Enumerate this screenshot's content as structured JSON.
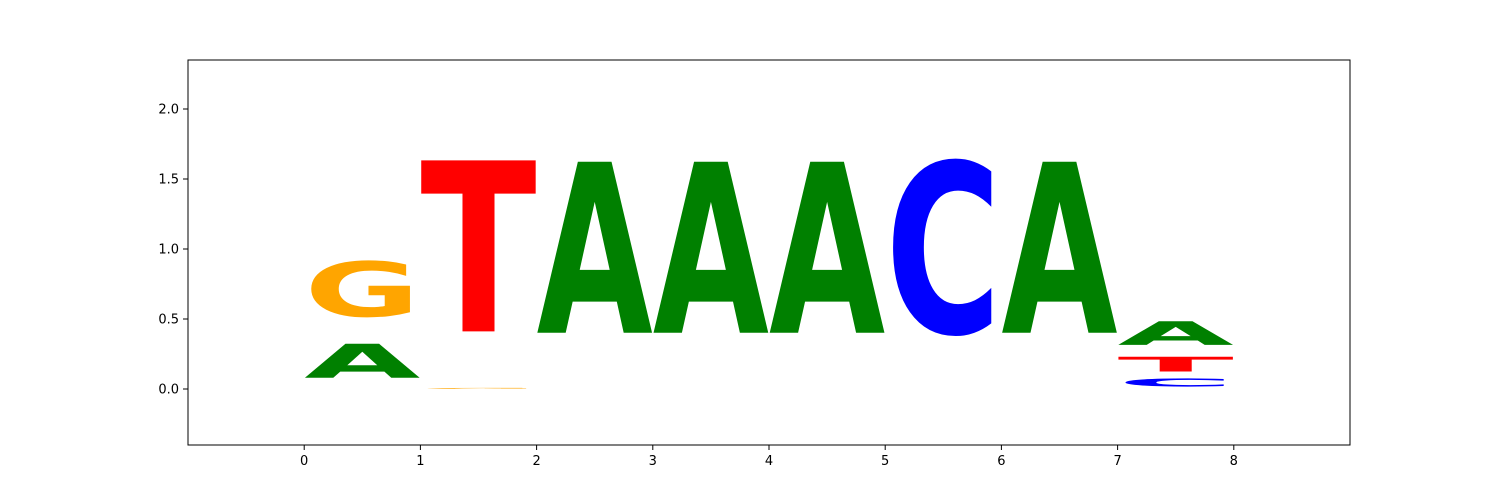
{
  "chart_data": {
    "type": "sequence-logo",
    "title": "",
    "xlabel": "",
    "ylabel": "",
    "xlim": [
      -1,
      9
    ],
    "ylim": [
      -0.4,
      2.35
    ],
    "xticks": [
      0,
      1,
      2,
      3,
      4,
      5,
      6,
      7,
      8
    ],
    "yticks": [
      0.0,
      0.5,
      1.0,
      1.5,
      2.0
    ],
    "ytick_labels": [
      "0.0",
      "0.5",
      "1.0",
      "1.5",
      "2.0"
    ],
    "grid": false,
    "colors": {
      "A": "#008000",
      "C": "#0000ff",
      "G": "#ffa500",
      "T": "#ff0000"
    },
    "positions": [
      {
        "x_start": 0,
        "x_end": 1,
        "stack": [
          {
            "base": "A",
            "height": 0.39
          },
          {
            "base": "G",
            "height": 0.63
          }
        ]
      },
      {
        "x_start": 1,
        "x_end": 2,
        "stack": [
          {
            "base": "G",
            "height": 0.01
          },
          {
            "base": "T",
            "height": 1.96
          }
        ]
      },
      {
        "x_start": 2,
        "x_end": 3,
        "stack": [
          {
            "base": "A",
            "height": 1.96
          }
        ]
      },
      {
        "x_start": 3,
        "x_end": 4,
        "stack": [
          {
            "base": "A",
            "height": 1.96
          }
        ]
      },
      {
        "x_start": 4,
        "x_end": 5,
        "stack": [
          {
            "base": "A",
            "height": 1.96
          }
        ]
      },
      {
        "x_start": 5,
        "x_end": 6,
        "stack": [
          {
            "base": "C",
            "height": 1.96
          }
        ]
      },
      {
        "x_start": 6,
        "x_end": 7,
        "stack": [
          {
            "base": "A",
            "height": 1.96
          }
        ]
      },
      {
        "x_start": 7,
        "x_end": 8,
        "stack": [
          {
            "base": "C",
            "height": 0.09
          },
          {
            "base": "T",
            "height": 0.17
          },
          {
            "base": "A",
            "height": 0.27
          }
        ]
      }
    ]
  }
}
